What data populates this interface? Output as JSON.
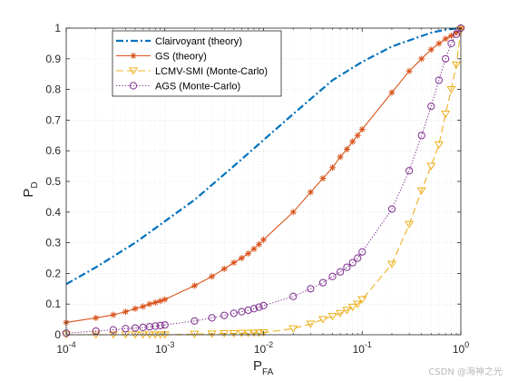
{
  "chart_data": {
    "type": "line",
    "xscale": "log",
    "xlim": [
      0.0001,
      1
    ],
    "ylim": [
      0,
      1
    ],
    "grid": true,
    "minor_grid": true,
    "legend_position": "top-left",
    "x_ticks": [
      {
        "value": 0.0001,
        "base": "10",
        "exp": "-4"
      },
      {
        "value": 0.001,
        "base": "10",
        "exp": "-3"
      },
      {
        "value": 0.01,
        "base": "10",
        "exp": "-2"
      },
      {
        "value": 0.1,
        "base": "10",
        "exp": "-1"
      },
      {
        "value": 1,
        "base": "10",
        "exp": "0"
      }
    ],
    "y_ticks": [
      "0",
      "0.1",
      "0.2",
      "0.3",
      "0.4",
      "0.5",
      "0.6",
      "0.7",
      "0.8",
      "0.9",
      "1"
    ],
    "xlabel": {
      "main": "P",
      "sub": "FA"
    },
    "ylabel": {
      "main": "P",
      "sub": "D"
    },
    "series": [
      {
        "name": "Clairvoyant (theory)",
        "color": "#0072BD",
        "line": "dash-dot",
        "marker": "none",
        "x": [
          0.0001,
          0.0002,
          0.0005,
          0.001,
          0.002,
          0.005,
          0.01,
          0.02,
          0.05,
          0.1,
          0.2,
          0.3,
          0.5,
          0.7,
          1.0
        ],
        "y": [
          0.165,
          0.22,
          0.3,
          0.37,
          0.44,
          0.55,
          0.635,
          0.72,
          0.83,
          0.89,
          0.94,
          0.96,
          0.985,
          0.995,
          1.0
        ]
      },
      {
        "name": "GS (theory)",
        "color": "#D95319",
        "line": "solid",
        "marker": "asterisk",
        "x": [
          0.0001,
          0.0002,
          0.0003,
          0.0004,
          0.0005,
          0.0006,
          0.0007,
          0.0008,
          0.0009,
          0.001,
          0.002,
          0.003,
          0.004,
          0.005,
          0.006,
          0.007,
          0.008,
          0.009,
          0.01,
          0.02,
          0.03,
          0.04,
          0.05,
          0.06,
          0.07,
          0.08,
          0.09,
          0.1,
          0.2,
          0.3,
          0.4,
          0.5,
          0.6,
          0.7,
          0.8,
          0.9,
          1.0
        ],
        "y": [
          0.04,
          0.055,
          0.065,
          0.075,
          0.085,
          0.092,
          0.1,
          0.105,
          0.11,
          0.115,
          0.16,
          0.19,
          0.215,
          0.235,
          0.25,
          0.265,
          0.28,
          0.295,
          0.31,
          0.4,
          0.465,
          0.51,
          0.545,
          0.58,
          0.605,
          0.63,
          0.65,
          0.67,
          0.79,
          0.86,
          0.9,
          0.93,
          0.95,
          0.965,
          0.975,
          0.985,
          1.0
        ]
      },
      {
        "name": "LCMV-SMI (Monte-Carlo)",
        "color": "#EDB120",
        "line": "dashed",
        "marker": "triangle-down",
        "x": [
          0.0001,
          0.0002,
          0.0003,
          0.0004,
          0.0005,
          0.0006,
          0.0007,
          0.0008,
          0.0009,
          0.001,
          0.002,
          0.003,
          0.004,
          0.005,
          0.006,
          0.007,
          0.008,
          0.009,
          0.01,
          0.02,
          0.03,
          0.04,
          0.05,
          0.06,
          0.07,
          0.08,
          0.09,
          0.1,
          0.2,
          0.3,
          0.4,
          0.5,
          0.6,
          0.7,
          0.8,
          0.9,
          1.0
        ],
        "y": [
          0.0,
          0.0,
          0.0,
          0.0,
          0.0,
          0.0,
          0.0,
          0.0,
          0.0,
          0.0,
          0.002,
          0.003,
          0.004,
          0.004,
          0.005,
          0.005,
          0.006,
          0.006,
          0.007,
          0.02,
          0.035,
          0.05,
          0.06,
          0.07,
          0.08,
          0.09,
          0.1,
          0.115,
          0.23,
          0.36,
          0.47,
          0.55,
          0.62,
          0.72,
          0.8,
          0.88,
          0.995
        ]
      },
      {
        "name": "AGS (Monte-Carlo)",
        "color": "#7E2F8E",
        "line": "dotted",
        "marker": "circle",
        "x": [
          0.0001,
          0.0002,
          0.0003,
          0.0004,
          0.0005,
          0.0006,
          0.0007,
          0.0008,
          0.0009,
          0.001,
          0.002,
          0.003,
          0.004,
          0.005,
          0.006,
          0.007,
          0.008,
          0.009,
          0.01,
          0.02,
          0.03,
          0.04,
          0.05,
          0.06,
          0.07,
          0.08,
          0.09,
          0.1,
          0.2,
          0.3,
          0.4,
          0.5,
          0.6,
          0.7,
          0.8,
          0.9,
          1.0
        ],
        "y": [
          0.005,
          0.012,
          0.016,
          0.02,
          0.022,
          0.024,
          0.026,
          0.028,
          0.03,
          0.032,
          0.045,
          0.055,
          0.063,
          0.07,
          0.075,
          0.08,
          0.085,
          0.09,
          0.095,
          0.125,
          0.15,
          0.17,
          0.19,
          0.205,
          0.22,
          0.235,
          0.25,
          0.27,
          0.41,
          0.535,
          0.65,
          0.745,
          0.83,
          0.9,
          0.95,
          0.98,
          1.0
        ]
      }
    ]
  },
  "watermark": "CSDN @海神之光"
}
